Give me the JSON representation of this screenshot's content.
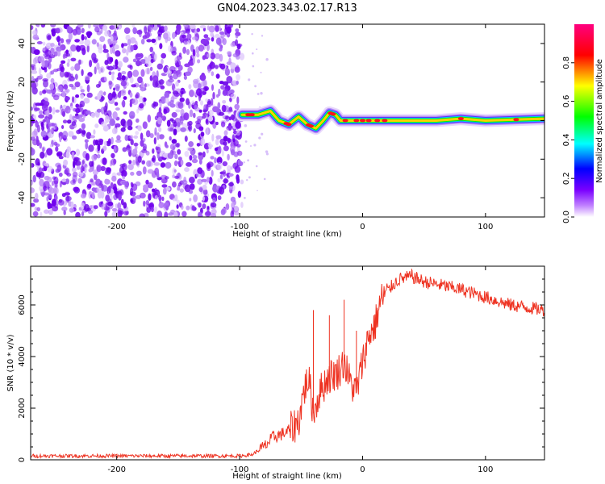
{
  "figure": {
    "title": "GN04.2023.343.02.17.R13"
  },
  "colorbar": {
    "label": "Normalized spectral amplitude",
    "ticks": [
      "0.0",
      "0.2",
      "0.4",
      "0.6",
      "0.8"
    ],
    "tick_values": [
      0.0,
      0.2,
      0.4,
      0.6,
      0.8
    ],
    "range": [
      0,
      1
    ],
    "colormap": [
      "#ffffff",
      "#7a00ff",
      "#0000ff",
      "#00ffff",
      "#00ff00",
      "#ffff00",
      "#ff0000",
      "#ff007f"
    ]
  },
  "chart_data": [
    {
      "type": "heatmap",
      "xlabel": "Height of straight line (km)",
      "ylabel": "Frequency (Hz)",
      "xlim": [
        -270,
        148
      ],
      "ylim": [
        -50,
        50
      ],
      "xticks": [
        -200,
        -100,
        0,
        100
      ],
      "xtick_labels": [
        "-200",
        "-100",
        "0",
        "100"
      ],
      "yticks": [
        -40,
        -20,
        0,
        20,
        40
      ],
      "ytick_labels": [
        "-40",
        "-20",
        "0",
        "20",
        "40"
      ],
      "noise_region_x": [
        -270,
        -98
      ],
      "ridge": {
        "x": [
          -98,
          -85,
          -75,
          -68,
          -60,
          -52,
          -45,
          -38,
          -32,
          -27,
          -22,
          -18,
          -12,
          0,
          20,
          60,
          80,
          100,
          148
        ],
        "y": [
          3,
          3,
          5,
          0,
          -2,
          2,
          -2,
          -4,
          0,
          4,
          3,
          0,
          0,
          0,
          0,
          0,
          1,
          0,
          1
        ],
        "peak_amplitude": 1.0
      },
      "colormap": [
        "#ffffff",
        "#7a00ff",
        "#0000ff",
        "#00ffff",
        "#00ff00",
        "#ffff00",
        "#ff0000",
        "#ff007f"
      ]
    },
    {
      "type": "line",
      "xlabel": "Height of straight line (km)",
      "ylabel": "SNR (10 * v/v)",
      "xlim": [
        -270,
        148
      ],
      "ylim": [
        0,
        7500
      ],
      "xticks": [
        -200,
        -100,
        0,
        100
      ],
      "xtick_labels": [
        "-200",
        "-100",
        "0",
        "100"
      ],
      "yticks": [
        0,
        2000,
        4000,
        6000
      ],
      "ytick_labels": [
        "0",
        "2000",
        "4000",
        "6000"
      ],
      "series": [
        {
          "color": "#ee3322",
          "x": [
            -270,
            -100,
            -90,
            -80,
            -72,
            -65,
            -58,
            -52,
            -48,
            -44,
            -40,
            -35,
            -28,
            -20,
            -15,
            -10,
            -5,
            0,
            5,
            10,
            15,
            20,
            25,
            30,
            40,
            50,
            60,
            80,
            100,
            120,
            148
          ],
          "y": [
            150,
            150,
            200,
            500,
            900,
            1000,
            1200,
            1500,
            2600,
            3200,
            1800,
            2600,
            3200,
            3400,
            3800,
            3000,
            2600,
            3800,
            4800,
            5200,
            6200,
            6500,
            6800,
            7000,
            7100,
            6900,
            6800,
            6600,
            6300,
            6000,
            5800
          ]
        }
      ],
      "spikes": [
        {
          "x": -40,
          "y": 5800
        },
        {
          "x": -27,
          "y": 5600
        },
        {
          "x": -15,
          "y": 6200
        },
        {
          "x": -5,
          "y": 5000
        },
        {
          "x": 40,
          "y": 7400
        }
      ]
    }
  ]
}
